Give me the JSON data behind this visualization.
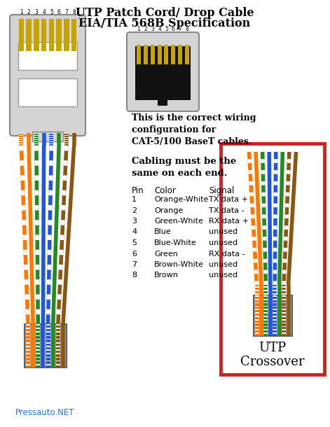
{
  "title_line1": "UTP Patch Cord/ Drop Cable",
  "title_line2": "EIA/TIA 568B Specification",
  "pin_labels": [
    "1",
    "2",
    "3",
    "4",
    "5",
    "6",
    "7",
    "8"
  ],
  "pin_color_names": [
    "Orange-White",
    "Orange",
    "Green-White",
    "Blue",
    "Blue-White",
    "Green",
    "Brown-White",
    "Brown"
  ],
  "pin_signals": [
    "TX data +",
    "TX data -",
    "RX data +",
    "unused",
    "unused",
    "RX data -",
    "unused",
    "unused"
  ],
  "correct_wiring_text1": "This is the correct wiring",
  "correct_wiring_text2": "configuration for",
  "correct_wiring_text3": "CAT-5/100 BaseT cables.",
  "cabling_text1": "Cabling must be the",
  "cabling_text2": "same on each end.",
  "crossover_label1": "UTP",
  "crossover_label2": "Crossover",
  "watermark": "Pressauto.NET",
  "connector_body_color": "#d4d4d4",
  "connector_contact_color": "#C8A400",
  "jack_body_color": "#111111",
  "jack_outer_color": "#d4d4d4",
  "crossover_box_color": "#cc2222",
  "cable_jacket_color": "#a0a0a0",
  "wire_base_colors": [
    "#FF7700",
    "#FF7700",
    "#228B22",
    "#2255DD",
    "#2255DD",
    "#228B22",
    "#8B5513",
    "#8B5513"
  ],
  "wire_striped": [
    true,
    false,
    true,
    false,
    true,
    false,
    true,
    false
  ],
  "watermark_color": "#2277DD"
}
